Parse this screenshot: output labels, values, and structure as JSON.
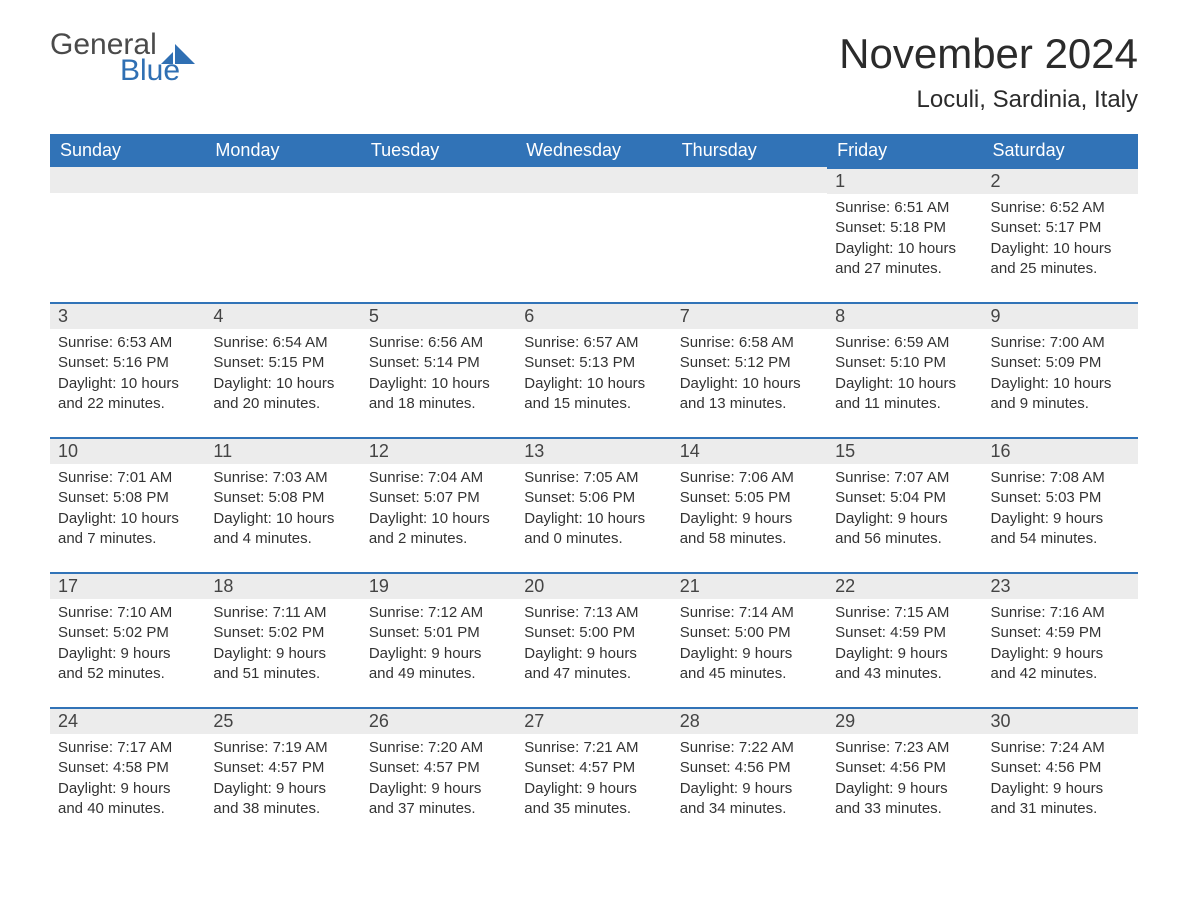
{
  "logo": {
    "word1": "General",
    "word2": "Blue"
  },
  "title": "November 2024",
  "location": "Loculi, Sardinia, Italy",
  "colors": {
    "header_bg": "#3173b7",
    "header_text": "#ffffff",
    "row_border": "#3173b7",
    "daynum_bg": "#ececec",
    "logo_blue": "#2f6fb3",
    "logo_gray": "#4a4a4a"
  },
  "weekday_labels": [
    "Sunday",
    "Monday",
    "Tuesday",
    "Wednesday",
    "Thursday",
    "Friday",
    "Saturday"
  ],
  "weeks": [
    [
      null,
      null,
      null,
      null,
      null,
      {
        "n": "1",
        "sunrise": "Sunrise: 6:51 AM",
        "sunset": "Sunset: 5:18 PM",
        "day1": "Daylight: 10 hours",
        "day2": "and 27 minutes."
      },
      {
        "n": "2",
        "sunrise": "Sunrise: 6:52 AM",
        "sunset": "Sunset: 5:17 PM",
        "day1": "Daylight: 10 hours",
        "day2": "and 25 minutes."
      }
    ],
    [
      {
        "n": "3",
        "sunrise": "Sunrise: 6:53 AM",
        "sunset": "Sunset: 5:16 PM",
        "day1": "Daylight: 10 hours",
        "day2": "and 22 minutes."
      },
      {
        "n": "4",
        "sunrise": "Sunrise: 6:54 AM",
        "sunset": "Sunset: 5:15 PM",
        "day1": "Daylight: 10 hours",
        "day2": "and 20 minutes."
      },
      {
        "n": "5",
        "sunrise": "Sunrise: 6:56 AM",
        "sunset": "Sunset: 5:14 PM",
        "day1": "Daylight: 10 hours",
        "day2": "and 18 minutes."
      },
      {
        "n": "6",
        "sunrise": "Sunrise: 6:57 AM",
        "sunset": "Sunset: 5:13 PM",
        "day1": "Daylight: 10 hours",
        "day2": "and 15 minutes."
      },
      {
        "n": "7",
        "sunrise": "Sunrise: 6:58 AM",
        "sunset": "Sunset: 5:12 PM",
        "day1": "Daylight: 10 hours",
        "day2": "and 13 minutes."
      },
      {
        "n": "8",
        "sunrise": "Sunrise: 6:59 AM",
        "sunset": "Sunset: 5:10 PM",
        "day1": "Daylight: 10 hours",
        "day2": "and 11 minutes."
      },
      {
        "n": "9",
        "sunrise": "Sunrise: 7:00 AM",
        "sunset": "Sunset: 5:09 PM",
        "day1": "Daylight: 10 hours",
        "day2": "and 9 minutes."
      }
    ],
    [
      {
        "n": "10",
        "sunrise": "Sunrise: 7:01 AM",
        "sunset": "Sunset: 5:08 PM",
        "day1": "Daylight: 10 hours",
        "day2": "and 7 minutes."
      },
      {
        "n": "11",
        "sunrise": "Sunrise: 7:03 AM",
        "sunset": "Sunset: 5:08 PM",
        "day1": "Daylight: 10 hours",
        "day2": "and 4 minutes."
      },
      {
        "n": "12",
        "sunrise": "Sunrise: 7:04 AM",
        "sunset": "Sunset: 5:07 PM",
        "day1": "Daylight: 10 hours",
        "day2": "and 2 minutes."
      },
      {
        "n": "13",
        "sunrise": "Sunrise: 7:05 AM",
        "sunset": "Sunset: 5:06 PM",
        "day1": "Daylight: 10 hours",
        "day2": "and 0 minutes."
      },
      {
        "n": "14",
        "sunrise": "Sunrise: 7:06 AM",
        "sunset": "Sunset: 5:05 PM",
        "day1": "Daylight: 9 hours",
        "day2": "and 58 minutes."
      },
      {
        "n": "15",
        "sunrise": "Sunrise: 7:07 AM",
        "sunset": "Sunset: 5:04 PM",
        "day1": "Daylight: 9 hours",
        "day2": "and 56 minutes."
      },
      {
        "n": "16",
        "sunrise": "Sunrise: 7:08 AM",
        "sunset": "Sunset: 5:03 PM",
        "day1": "Daylight: 9 hours",
        "day2": "and 54 minutes."
      }
    ],
    [
      {
        "n": "17",
        "sunrise": "Sunrise: 7:10 AM",
        "sunset": "Sunset: 5:02 PM",
        "day1": "Daylight: 9 hours",
        "day2": "and 52 minutes."
      },
      {
        "n": "18",
        "sunrise": "Sunrise: 7:11 AM",
        "sunset": "Sunset: 5:02 PM",
        "day1": "Daylight: 9 hours",
        "day2": "and 51 minutes."
      },
      {
        "n": "19",
        "sunrise": "Sunrise: 7:12 AM",
        "sunset": "Sunset: 5:01 PM",
        "day1": "Daylight: 9 hours",
        "day2": "and 49 minutes."
      },
      {
        "n": "20",
        "sunrise": "Sunrise: 7:13 AM",
        "sunset": "Sunset: 5:00 PM",
        "day1": "Daylight: 9 hours",
        "day2": "and 47 minutes."
      },
      {
        "n": "21",
        "sunrise": "Sunrise: 7:14 AM",
        "sunset": "Sunset: 5:00 PM",
        "day1": "Daylight: 9 hours",
        "day2": "and 45 minutes."
      },
      {
        "n": "22",
        "sunrise": "Sunrise: 7:15 AM",
        "sunset": "Sunset: 4:59 PM",
        "day1": "Daylight: 9 hours",
        "day2": "and 43 minutes."
      },
      {
        "n": "23",
        "sunrise": "Sunrise: 7:16 AM",
        "sunset": "Sunset: 4:59 PM",
        "day1": "Daylight: 9 hours",
        "day2": "and 42 minutes."
      }
    ],
    [
      {
        "n": "24",
        "sunrise": "Sunrise: 7:17 AM",
        "sunset": "Sunset: 4:58 PM",
        "day1": "Daylight: 9 hours",
        "day2": "and 40 minutes."
      },
      {
        "n": "25",
        "sunrise": "Sunrise: 7:19 AM",
        "sunset": "Sunset: 4:57 PM",
        "day1": "Daylight: 9 hours",
        "day2": "and 38 minutes."
      },
      {
        "n": "26",
        "sunrise": "Sunrise: 7:20 AM",
        "sunset": "Sunset: 4:57 PM",
        "day1": "Daylight: 9 hours",
        "day2": "and 37 minutes."
      },
      {
        "n": "27",
        "sunrise": "Sunrise: 7:21 AM",
        "sunset": "Sunset: 4:57 PM",
        "day1": "Daylight: 9 hours",
        "day2": "and 35 minutes."
      },
      {
        "n": "28",
        "sunrise": "Sunrise: 7:22 AM",
        "sunset": "Sunset: 4:56 PM",
        "day1": "Daylight: 9 hours",
        "day2": "and 34 minutes."
      },
      {
        "n": "29",
        "sunrise": "Sunrise: 7:23 AM",
        "sunset": "Sunset: 4:56 PM",
        "day1": "Daylight: 9 hours",
        "day2": "and 33 minutes."
      },
      {
        "n": "30",
        "sunrise": "Sunrise: 7:24 AM",
        "sunset": "Sunset: 4:56 PM",
        "day1": "Daylight: 9 hours",
        "day2": "and 31 minutes."
      }
    ]
  ]
}
